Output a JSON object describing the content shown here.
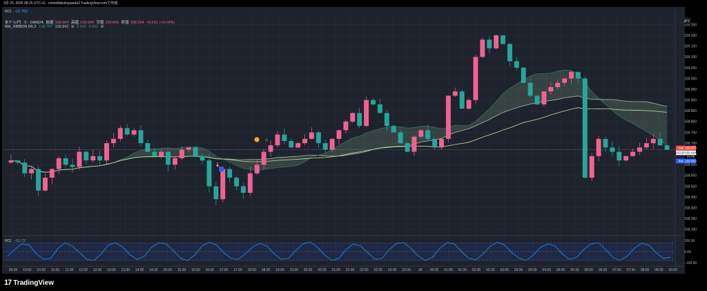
{
  "header": {
    "timestamp": "3月 25, 2026 08:25 UTC+9、crimin8deskspanda3 TradingView.comで作成"
  },
  "top_indicator": {
    "name": "RCI",
    "value": "−12.762"
  },
  "legend": {
    "symbol": "米ドル/円 · 5 · OANDA",
    "open_label": "始値",
    "open": "158.664",
    "high_label": "高値",
    "high": "158.664",
    "low_label": "安値",
    "low": "158.663",
    "close_label": "終値",
    "close": "158.664",
    "change": "+0.001 (+0.00%)",
    "ribbon_name": "MA_RIBBON R5.2",
    "ribbon_v1": "158.747",
    "ribbon_v2": "158.842",
    "ribbon_v3": "0.000",
    "ribbon_v4": "0.000"
  },
  "rci_legend": {
    "name": "RCI",
    "value": "−52.72"
  },
  "currency": "JPY",
  "price_tags": {
    "ask_label": "Ask",
    "ask": "158.673",
    "symbol": "USDJPY",
    "last": "158.664",
    "countdown": "04:55",
    "bid_label": "Bid",
    "bid": "158.653"
  },
  "brand": {
    "name": "TradingView",
    "logo_text": "17"
  },
  "colors": {
    "up": "#f06292",
    "down": "#26a69a",
    "ribbon": "#a5d6a7",
    "rci": "#1e88e5",
    "ask": "#ef5350",
    "bid": "#2962ff"
  },
  "chart_data": [
    {
      "type": "candlestick",
      "title": "米ドル/円 · 5 · OANDA",
      "ylabel": "JPY",
      "ylim": [
        158.29,
        159.3
      ],
      "y_ticks": [
        "159.250",
        "159.200",
        "159.150",
        "159.100",
        "159.050",
        "159.000",
        "158.950",
        "158.900",
        "158.850",
        "158.800",
        "158.750",
        "158.700",
        "158.650",
        "158.600",
        "158.550",
        "158.500",
        "158.450",
        "158.400",
        "158.350",
        "158.300"
      ],
      "x_ticks": [
        "09:30",
        "10:00",
        "10:30",
        "11:00",
        "11:30",
        "12:00",
        "12:30",
        "13:00",
        "13:30",
        "14:00",
        "14:30",
        "15:00",
        "15:30",
        "16:00",
        "16:30",
        "17:00",
        "17:30",
        "18:00",
        "18:30",
        "19:00",
        "19:30",
        "20:00",
        "20:30",
        "21:00",
        "21:30",
        "22:00",
        "22:30",
        "23:00",
        "23:30",
        "25",
        "00:30",
        "01:00",
        "01:30",
        "02:00",
        "02:30",
        "03:00",
        "03:30",
        "04:00",
        "04:30",
        "05:00",
        "05:30",
        "06:00",
        "06:30",
        "07:00",
        "07:30",
        "08:00",
        "08:30",
        "09:00"
      ],
      "close_path": [
        158.62,
        158.61,
        158.56,
        158.58,
        158.48,
        158.54,
        158.58,
        158.63,
        158.6,
        158.59,
        158.66,
        158.62,
        158.64,
        158.62,
        158.7,
        158.72,
        158.77,
        158.74,
        158.76,
        158.7,
        158.66,
        158.64,
        158.66,
        158.6,
        158.63,
        158.67,
        158.68,
        158.64,
        158.62,
        158.5,
        158.44,
        158.58,
        158.54,
        158.5,
        158.47,
        158.56,
        158.6,
        158.66,
        158.69,
        158.74,
        158.71,
        158.68,
        158.7,
        158.72,
        158.75,
        158.7,
        158.67,
        158.72,
        158.76,
        158.8,
        158.84,
        158.78,
        158.9,
        158.88,
        158.84,
        158.78,
        158.75,
        158.7,
        158.66,
        158.73,
        158.76,
        158.72,
        158.68,
        158.72,
        158.92,
        158.94,
        158.86,
        158.9,
        159.1,
        159.18,
        159.14,
        159.2,
        159.16,
        159.08,
        159.05,
        158.98,
        158.92,
        158.88,
        158.94,
        158.96,
        158.98,
        159.0,
        159.03,
        159.0,
        158.54,
        158.64,
        158.72,
        158.68,
        158.66,
        158.62,
        158.64,
        158.66,
        158.68,
        158.7,
        158.72,
        158.69,
        158.67
      ]
    },
    {
      "type": "line",
      "title": "RCI",
      "y_ticks": [
        "100.00",
        "0.00",
        "−100.00"
      ],
      "ylim": [
        -100,
        100
      ],
      "series": [
        {
          "name": "RCI",
          "values": [
            -40,
            20,
            70,
            60,
            -20,
            -70,
            -60,
            30,
            80,
            50,
            -10,
            -70,
            -80,
            -20,
            60,
            80,
            40,
            -30,
            -70,
            -40,
            40,
            80,
            70,
            10,
            -60,
            -80,
            -30,
            50,
            85,
            60,
            -10,
            -60,
            -70,
            -20,
            40,
            75,
            50,
            -20,
            -70,
            -60,
            10,
            70,
            85,
            40,
            -30,
            -80,
            -60,
            20,
            70,
            50,
            -10,
            -70,
            -60,
            20,
            75,
            80,
            30,
            -40,
            -80,
            -50,
            30,
            80,
            70,
            0,
            -60,
            -75,
            -20,
            50,
            85,
            60,
            -10,
            -60,
            -80,
            -30,
            40,
            70,
            50,
            -20,
            -70,
            -50,
            20,
            70,
            80,
            20,
            -50,
            -80,
            -40,
            30,
            75,
            60,
            -10,
            -60,
            -50
          ]
        }
      ]
    }
  ]
}
